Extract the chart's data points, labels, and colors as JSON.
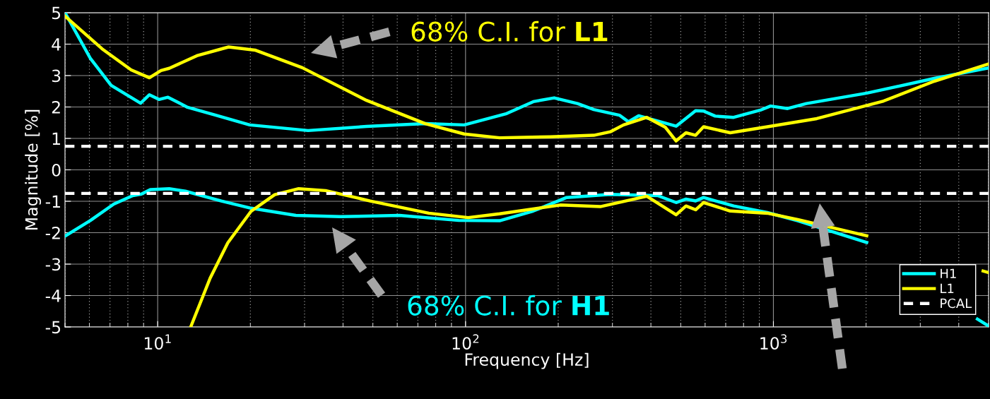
{
  "chart_data": {
    "type": "line",
    "xlabel": "Frequency [Hz]",
    "ylabel": "Magnitude [%]",
    "log": "x",
    "xlim": [
      5,
      5000
    ],
    "ylim": [
      -5,
      5
    ],
    "xticks": [
      {
        "value": 10,
        "label": "10$^{1}$"
      },
      {
        "value": 100,
        "label": "10$^{2}$"
      },
      {
        "value": 1000,
        "label": "10$^{3}$"
      }
    ],
    "yticks": [
      -5,
      -4,
      -3,
      -2,
      -1,
      0,
      1,
      2,
      3,
      4,
      5
    ],
    "grid": true,
    "legend": "bottom right",
    "line_style": "solid",
    "marker": "none",
    "series": [
      {
        "name": "H1",
        "color": "#00ffff",
        "x": [
          5,
          6.05,
          7.06,
          8.8,
          9.4,
          10.1,
          10.8,
          12.5,
          15.3,
          19.9,
          30.8,
          47.7,
          74,
          99,
          136,
          166,
          194,
          231,
          261,
          316,
          338,
          365,
          483,
          559,
          593,
          647,
          743,
          907,
          979,
          1112,
          1280,
          2010,
          3330,
          5000
        ],
        "values": [
          5.0,
          3.54,
          2.69,
          2.12,
          2.39,
          2.24,
          2.31,
          1.99,
          1.75,
          1.43,
          1.25,
          1.38,
          1.47,
          1.43,
          1.79,
          2.17,
          2.29,
          2.11,
          1.92,
          1.74,
          1.53,
          1.72,
          1.39,
          1.88,
          1.87,
          1.71,
          1.67,
          1.9,
          2.03,
          1.95,
          2.11,
          2.44,
          2.91,
          3.24
        ]
      },
      {
        "color": "#00ffff",
        "x": [
          5,
          6.05,
          7.2,
          8.3,
          8.86,
          9.46,
          10.9,
          12.3,
          16.1,
          20.1,
          28.1,
          39.3,
          61,
          95,
          129,
          166,
          213,
          295,
          421,
          483,
          520,
          559,
          593,
          743,
          956,
          1200,
          2010,
          3000,
          4600,
          5000
        ],
        "values": [
          -2.11,
          -1.61,
          -1.09,
          -0.82,
          -0.77,
          -0.63,
          -0.6,
          -0.68,
          -0.99,
          -1.22,
          -1.45,
          -1.49,
          -1.45,
          -1.61,
          -1.62,
          -1.31,
          -0.88,
          -0.78,
          -0.82,
          -1.04,
          -0.93,
          -0.99,
          -0.88,
          -1.15,
          -1.36,
          -1.62,
          -2.31,
          null,
          -4.75,
          -4.97
        ]
      },
      {
        "name": "L1",
        "color": "#ffff00",
        "x": [
          5,
          6.6,
          8.2,
          9.4,
          10.25,
          10.9,
          13.4,
          17.0,
          20.7,
          29.5,
          47.7,
          74,
          99,
          129,
          188,
          261,
          295,
          326,
          388,
          445,
          483,
          520,
          559,
          593,
          724,
          956,
          1383,
          2280,
          3330,
          5000
        ],
        "values": [
          4.89,
          3.85,
          3.18,
          2.93,
          3.16,
          3.23,
          3.63,
          3.91,
          3.81,
          3.25,
          2.21,
          1.47,
          1.14,
          1.02,
          1.05,
          1.1,
          1.21,
          1.43,
          1.67,
          1.36,
          0.92,
          1.18,
          1.1,
          1.37,
          1.18,
          1.37,
          1.63,
          2.19,
          2.82,
          3.37
        ]
      },
      {
        "color": "#ffff00",
        "x": [
          12.8,
          14.8,
          16.9,
          20.1,
          24.0,
          28.7,
          35.1,
          49,
          76,
          102,
          129,
          203,
          274,
          388,
          483,
          520,
          559,
          593,
          724,
          956,
          1200,
          2010,
          3000,
          4800,
          5000
        ],
        "values": [
          -5.0,
          -3.45,
          -2.32,
          -1.32,
          -0.79,
          -0.6,
          -0.66,
          -0.99,
          -1.38,
          -1.52,
          -1.4,
          -1.12,
          -1.17,
          -0.84,
          -1.43,
          -1.15,
          -1.27,
          -1.04,
          -1.31,
          -1.38,
          -1.58,
          -2.1,
          null,
          -3.22,
          -3.27
        ]
      }
    ],
    "ref_lines": [
      {
        "axis": "y",
        "value": 0.75,
        "label": "PCAL",
        "color": "#ffffff",
        "line_style": "dashed"
      },
      {
        "axis": "y",
        "value": -0.75,
        "color": "#ffffff",
        "line_style": "dashed"
      }
    ],
    "annotations": [
      "68% C.I. for L1",
      "68% C.I. for H1"
    ]
  }
}
